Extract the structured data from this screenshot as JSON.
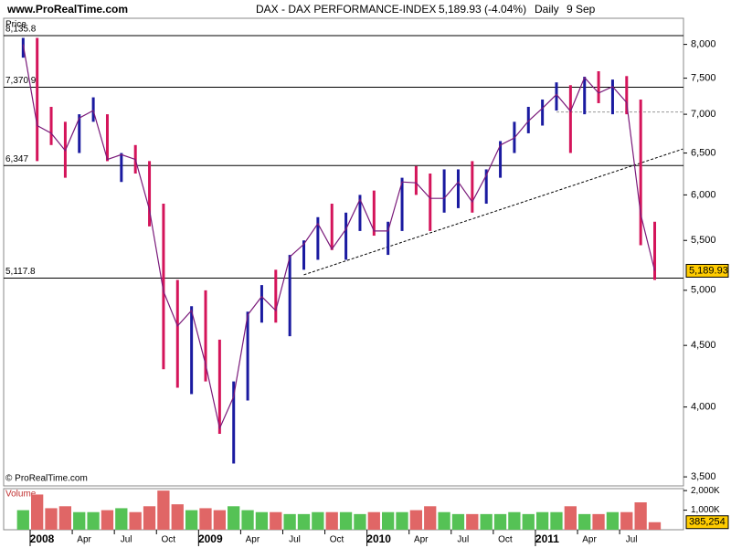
{
  "chart_data": {
    "type": "hilo",
    "site": "www.ProRealTime.com",
    "title": "DAX - DAX PERFORMANCE-INDEX",
    "quote": "5,189.93 (-4.04%)",
    "period": "Daily",
    "date": "9 Sep",
    "panel_label": "Price",
    "volume_label": "Volume",
    "copyright": "© ProRealTime.com",
    "log_scale": true,
    "x": [
      "2007-12",
      "2008-01",
      "2008-02",
      "2008-03",
      "2008-04",
      "2008-05",
      "2008-06",
      "2008-07",
      "2008-08",
      "2008-09",
      "2008-10",
      "2008-11",
      "2008-12",
      "2009-01",
      "2009-02",
      "2009-03",
      "2009-04",
      "2009-05",
      "2009-06",
      "2009-07",
      "2009-08",
      "2009-09",
      "2009-10",
      "2009-11",
      "2009-12",
      "2010-01",
      "2010-02",
      "2010-03",
      "2010-04",
      "2010-05",
      "2010-06",
      "2010-07",
      "2010-08",
      "2010-09",
      "2010-10",
      "2010-11",
      "2010-12",
      "2011-01",
      "2011-02",
      "2011-03",
      "2011-04",
      "2011-05",
      "2011-06",
      "2011-07",
      "2011-08",
      "2011-09"
    ],
    "close": [
      8000,
      6850,
      6750,
      6530,
      6950,
      7050,
      6420,
      6480,
      6420,
      5830,
      4990,
      4670,
      4810,
      4340,
      3840,
      4080,
      4770,
      4940,
      4810,
      5330,
      5460,
      5680,
      5410,
      5620,
      5950,
      5600,
      5600,
      6150,
      6140,
      5960,
      5960,
      6150,
      5920,
      6230,
      6600,
      6690,
      6910,
      7080,
      7270,
      7040,
      7510,
      7290,
      7380,
      7160,
      5780,
      5189.93
    ],
    "close_label": "5,189.93",
    "high": [
      8100,
      8100,
      7100,
      6900,
      7000,
      7230,
      7000,
      6500,
      6600,
      6400,
      5900,
      5100,
      4850,
      5000,
      4550,
      4200,
      4800,
      5050,
      5200,
      5350,
      5500,
      5750,
      5900,
      5800,
      6000,
      6050,
      5700,
      6200,
      6340,
      6250,
      6300,
      6300,
      6400,
      6300,
      6650,
      6900,
      7100,
      7200,
      7440,
      7400,
      7520,
      7600,
      7480,
      7530,
      7200,
      5700
    ],
    "low": [
      7800,
      6400,
      6600,
      6200,
      6500,
      6900,
      6400,
      6150,
      6250,
      5650,
      4300,
      4150,
      4100,
      4200,
      3800,
      3590,
      4050,
      4700,
      4700,
      4580,
      5200,
      5300,
      5400,
      5300,
      5600,
      5550,
      5350,
      5600,
      6000,
      5600,
      5800,
      5850,
      5800,
      5900,
      6200,
      6500,
      6750,
      6850,
      7050,
      6500,
      7000,
      7150,
      7000,
      7000,
      5450,
      5100
    ],
    "up_color": "#1a1aa0",
    "down_color": "#d4145a",
    "ylim": [
      3440,
      8410
    ],
    "yticks": [
      {
        "value": 3500,
        "label": "3,500"
      },
      {
        "value": 4000,
        "label": "4,000"
      },
      {
        "value": 4500,
        "label": "4,500"
      },
      {
        "value": 5000,
        "label": "5,000"
      },
      {
        "value": 5500,
        "label": "5,500"
      },
      {
        "value": 6000,
        "label": "6,000"
      },
      {
        "value": 6500,
        "label": "6,500"
      },
      {
        "value": 7000,
        "label": "7,000"
      },
      {
        "value": 7500,
        "label": "7,500"
      },
      {
        "value": 8000,
        "label": "8,000"
      }
    ],
    "xticks": [
      {
        "value": "2008-01",
        "label": "2008"
      },
      {
        "value": "2008-04",
        "label": "Apr"
      },
      {
        "value": "2008-07",
        "label": "Jul"
      },
      {
        "value": "2008-10",
        "label": "Oct"
      },
      {
        "value": "2009-01",
        "label": "2009"
      },
      {
        "value": "2009-04",
        "label": "Apr"
      },
      {
        "value": "2009-07",
        "label": "Jul"
      },
      {
        "value": "2009-10",
        "label": "Oct"
      },
      {
        "value": "2010-01",
        "label": "2010"
      },
      {
        "value": "2010-04",
        "label": "Apr"
      },
      {
        "value": "2010-07",
        "label": "Jul"
      },
      {
        "value": "2010-10",
        "label": "Oct"
      },
      {
        "value": "2011-01",
        "label": "2011"
      },
      {
        "value": "2011-04",
        "label": "Apr"
      },
      {
        "value": "2011-07",
        "label": "Jul"
      }
    ],
    "levels": [
      {
        "value": 8135.8,
        "label": "8,135.8"
      },
      {
        "value": 7370.9,
        "label": "7,370.9"
      },
      {
        "value": 6347,
        "label": "6,347"
      },
      {
        "value": 5117.8,
        "label": "5,117.8"
      }
    ],
    "trendline": {
      "x": [
        "2009-08",
        "2011-11"
      ],
      "values": [
        5150,
        6550
      ]
    },
    "resistance": {
      "x": [
        "2011-02",
        "2011-11"
      ],
      "values": [
        7030,
        7030
      ]
    },
    "volume": [
      1000000,
      1800000,
      1100000,
      1200000,
      900000,
      900000,
      1000000,
      1100000,
      900000,
      1200000,
      2000000,
      1300000,
      1000000,
      1100000,
      1000000,
      1200000,
      1000000,
      900000,
      900000,
      800000,
      800000,
      900000,
      900000,
      900000,
      800000,
      900000,
      900000,
      900000,
      1000000,
      1200000,
      900000,
      800000,
      800000,
      800000,
      800000,
      900000,
      800000,
      900000,
      900000,
      1200000,
      800000,
      800000,
      900000,
      900000,
      1400000,
      385254
    ],
    "volume_last_label": "385,254",
    "volume_up_color": "#55c255",
    "volume_down_color": "#e06666",
    "y2lim": [
      0,
      2100000
    ],
    "y2ticks": [
      {
        "value": 1000000,
        "label": "1,000K"
      },
      {
        "value": 2000000,
        "label": "2,000K"
      }
    ]
  }
}
